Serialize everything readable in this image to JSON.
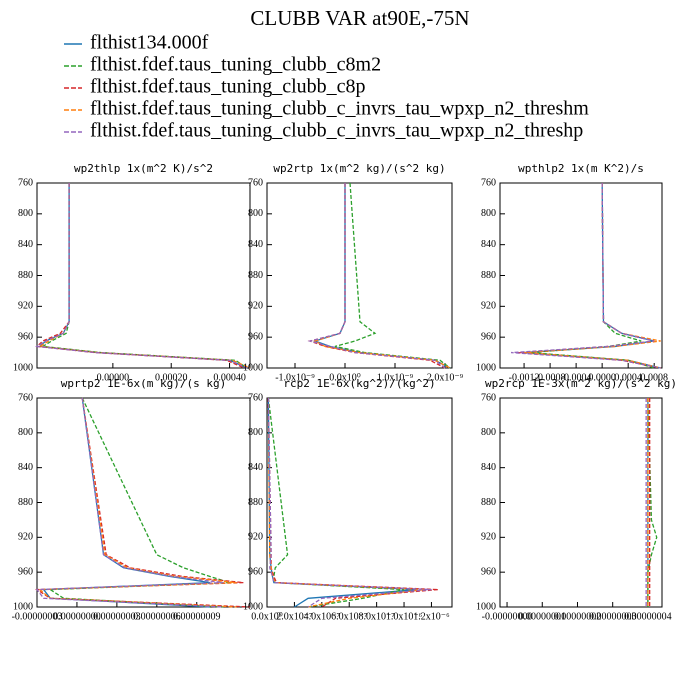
{
  "title": "CLUBB VAR at90E,-75N",
  "legend": [
    {
      "name": "flthist134.000f",
      "color": "#1f77b4",
      "dashed": false
    },
    {
      "name": "flthist.fdef.taus_tuning_clubb_c8m2",
      "color": "#2ca02c",
      "dashed": true
    },
    {
      "name": "flthist.fdef.taus_tuning_clubb_c8p",
      "color": "#d62728",
      "dashed": true
    },
    {
      "name": "flthist.fdef.taus_tuning_clubb_c_invrs_tau_wpxp_n2_threshm",
      "color": "#ff7f0e",
      "dashed": true
    },
    {
      "name": "flthist.fdef.taus_tuning_clubb_c_invrs_tau_wpxp_n2_threshp",
      "color": "#9467bd",
      "dashed": true
    }
  ],
  "chart_data": [
    {
      "type": "line",
      "title": "wp2thlp   1x(m^2 K)/s^2",
      "y": [
        760,
        940,
        955,
        965,
        972,
        980,
        990,
        1000
      ],
      "ylim": [
        1000,
        760
      ],
      "yticks": [
        760,
        800,
        840,
        880,
        920,
        960,
        1000
      ],
      "xlim": [
        -0.00026,
        0.00047
      ],
      "xticks": [
        {
          "value": 0,
          "label": "0.00000"
        },
        {
          "value": 0.0002,
          "label": "0.00020"
        },
        {
          "value": 0.0004,
          "label": "0.00040"
        }
      ],
      "series": [
        {
          "values": [
            -0.00015,
            -0.00015,
            -0.00017,
            -0.00023,
            -0.00025,
            -5e-05,
            0.0004,
            0.00046
          ]
        },
        {
          "values": [
            -0.00015,
            -0.00015,
            -0.00016,
            -0.00021,
            -0.00024,
            -4e-05,
            0.00042,
            0.00046
          ]
        },
        {
          "values": [
            -0.00015,
            -0.00015,
            -0.00018,
            -0.00024,
            -0.00026,
            -6e-05,
            0.00039,
            0.00045
          ]
        },
        {
          "values": [
            -0.00015,
            -0.00015,
            -0.00017,
            -0.00022,
            -0.00025,
            -5e-05,
            0.00041,
            0.00047
          ]
        },
        {
          "values": [
            -0.00015,
            -0.00015,
            -0.00017,
            -0.00023,
            -0.00026,
            -6e-05,
            0.0004,
            0.00046
          ]
        }
      ]
    },
    {
      "type": "line",
      "title": "wp2rtp   1x(m^2 kg)/(s^2 kg)",
      "y": [
        760,
        940,
        955,
        965,
        972,
        980,
        990,
        1000
      ],
      "ylim": [
        1000,
        760
      ],
      "yticks": [
        760,
        800,
        840,
        880,
        920,
        960,
        1000
      ],
      "xlim": [
        -1.56e-09,
        2.14e-09
      ],
      "xticks": [
        {
          "value": -1e-09,
          "label": "-1.0x10⁻⁹"
        },
        {
          "value": 0,
          "label": "0.0x10⁰"
        },
        {
          "value": 1e-09,
          "label": "1.0x10⁻⁹"
        },
        {
          "value": 2e-09,
          "label": "2.0x10⁻⁹"
        }
      ],
      "series": [
        {
          "values": [
            0,
            0,
            -1e-10,
            -6e-10,
            -3e-10,
            3e-10,
            1.8e-09,
            2.1e-09
          ]
        },
        {
          "values": [
            1e-10,
            3e-10,
            6e-10,
            2e-10,
            -2e-10,
            4e-10,
            1.9e-09,
            2.1e-09
          ]
        },
        {
          "values": [
            0,
            0,
            -1e-10,
            -7e-10,
            -4e-10,
            2e-10,
            1.7e-09,
            2e-09
          ]
        },
        {
          "values": [
            0,
            0,
            -1e-10,
            -6e-10,
            -4e-10,
            3e-10,
            1.8e-09,
            2.1e-09
          ]
        },
        {
          "values": [
            0,
            0,
            -1e-10,
            -7e-10,
            -3e-10,
            2e-10,
            1.8e-09,
            2e-09
          ]
        }
      ]
    },
    {
      "type": "line",
      "title": "wpthlp2   1x(m K^2)/s",
      "y": [
        760,
        940,
        955,
        965,
        972,
        980,
        990,
        1000
      ],
      "ylim": [
        1000,
        760
      ],
      "yticks": [
        760,
        800,
        840,
        880,
        920,
        960,
        1000
      ],
      "xlim": [
        -0.00157,
        0.00092
      ],
      "xticks": [
        -0.0012,
        -0.0008,
        -0.0004,
        {
          "value": 0,
          "label": "0.0000"
        },
        0.0004,
        0.0008
      ],
      "series": [
        {
          "values": [
            0,
            2e-05,
            0.0003,
            0.0008,
            0.0002,
            -0.0012,
            0.0004,
            0.0009
          ]
        },
        {
          "values": [
            0,
            2e-05,
            0.0002,
            0.0006,
            0.0001,
            -0.0011,
            0.0004,
            0.0008
          ]
        },
        {
          "values": [
            0,
            2e-05,
            0.0003,
            0.0008,
            0.0001,
            -0.0013,
            0.0003,
            0.0009
          ]
        },
        {
          "values": [
            0,
            2e-05,
            0.0003,
            0.0009,
            0.0002,
            -0.0012,
            0.0004,
            0.0009
          ]
        },
        {
          "values": [
            0,
            2e-05,
            0.0003,
            0.0008,
            0.0001,
            -0.0014,
            0.0003,
            0.0009
          ]
        }
      ]
    },
    {
      "type": "line",
      "title": "wprtp2   1E-6x(m kg)/(s kg)",
      "y": [
        760,
        940,
        955,
        965,
        972,
        980,
        990,
        1000
      ],
      "ylim": [
        1000,
        760
      ],
      "yticks": [
        760,
        800,
        840,
        880,
        920,
        960,
        1000
      ],
      "xlim": [
        -3e-08,
        1.3e-07
      ],
      "xticks": [
        {
          "value": -3e-08,
          "label": "-0.00000003"
        },
        {
          "value": 0,
          "label": "0.00000000"
        },
        {
          "value": 3e-08,
          "label": "0.00000003"
        },
        {
          "value": 6e-08,
          "label": "0.00000006"
        },
        {
          "value": 9e-08,
          "label": "0.00000009"
        }
      ],
      "series": [
        {
          "values": [
            4e-09,
            2e-08,
            3.5e-08,
            7e-08,
            1e-07,
            -2.5e-08,
            -2e-08,
            1e-07
          ]
        },
        {
          "values": [
            4e-09,
            6e-08,
            8e-08,
            1e-07,
            1.15e-07,
            -2e-08,
            -1e-08,
            1.1e-07
          ]
        },
        {
          "values": [
            4e-09,
            2.2e-08,
            4e-08,
            8e-08,
            1.25e-07,
            -3e-08,
            -2e-08,
            1.3e-07
          ]
        },
        {
          "values": [
            4e-09,
            2.1e-08,
            3.8e-08,
            7.5e-08,
            1.2e-07,
            -2.8e-08,
            -2e-08,
            1.2e-07
          ]
        },
        {
          "values": [
            4e-09,
            2e-08,
            3.6e-08,
            7.2e-08,
            1.1e-07,
            -3e-08,
            -2.5e-08,
            1.1e-07
          ]
        }
      ]
    },
    {
      "type": "line",
      "title": "rcp2   1E-6x(kg^2)/(kg^2)",
      "y": [
        760,
        940,
        955,
        965,
        972,
        980,
        990,
        1000
      ],
      "ylim": [
        1000,
        760
      ],
      "yticks": [
        760,
        800,
        840,
        880,
        920,
        960,
        1000
      ],
      "xlim": [
        0,
        1.35e-06
      ],
      "xticks": [
        {
          "value": 0,
          "label": "0.0x10⁰"
        },
        {
          "value": 2e-07,
          "label": "2.0x10⁻⁷"
        },
        {
          "value": 4e-07,
          "label": "4.0x10⁻⁷"
        },
        {
          "value": 6e-07,
          "label": "6.0x10⁻⁷"
        },
        {
          "value": 8e-07,
          "label": "8.0x10⁻⁷"
        },
        {
          "value": 1e-06,
          "label": "1.0x10⁻⁶"
        },
        {
          "value": 1.2e-06,
          "label": "1.2x10⁻⁶"
        }
      ],
      "series": [
        {
          "values": [
            1e-08,
            2e-08,
            3e-08,
            4e-08,
            5e-08,
            1.1e-06,
            3e-07,
            2e-07
          ]
        },
        {
          "values": [
            1e-08,
            1.5e-07,
            6e-08,
            5e-08,
            6e-08,
            1e-06,
            7e-07,
            3e-07
          ]
        },
        {
          "values": [
            1e-08,
            3e-08,
            3e-08,
            5e-08,
            7e-08,
            1.25e-06,
            5e-07,
            4e-07
          ]
        },
        {
          "values": [
            1e-08,
            2e-08,
            3e-08,
            4e-08,
            6e-08,
            1.15e-06,
            6e-07,
            3e-07
          ]
        },
        {
          "values": [
            1e-08,
            3e-08,
            2e-08,
            4e-08,
            5e-08,
            1.2e-06,
            4e-07,
            3e-07
          ]
        }
      ]
    },
    {
      "type": "line",
      "title": "wp2rcp   1E-3x(m^2 kg)/(s^2 kg)",
      "y": [
        760,
        900,
        920,
        940,
        960,
        980,
        990,
        1000
      ],
      "ylim": [
        1000,
        760
      ],
      "yticks": [
        760,
        800,
        840,
        880,
        920,
        960,
        1000
      ],
      "xlim": [
        -2e-09,
        4.4e-08
      ],
      "xticks": [
        {
          "value": 0,
          "label": "-0.00000000"
        },
        {
          "value": 1e-08,
          "label": "0.00000001"
        },
        {
          "value": 2e-08,
          "label": "0.00000002"
        },
        {
          "value": 3e-08,
          "label": "0.00000003"
        },
        {
          "value": 4e-08,
          "label": "0.00000004"
        }
      ],
      "series": [
        {
          "values": [
            4e-08,
            4e-08,
            4e-08,
            4e-08,
            4e-08,
            4e-08,
            4e-08,
            4e-08
          ]
        },
        {
          "values": [
            4e-08,
            4.1e-08,
            4.25e-08,
            4.1e-08,
            4e-08,
            4e-08,
            4e-08,
            4e-08
          ]
        },
        {
          "values": [
            4.05e-08,
            4.05e-08,
            4.05e-08,
            4.05e-08,
            4.05e-08,
            4.05e-08,
            4.05e-08,
            4.05e-08
          ]
        },
        {
          "values": [
            4e-08,
            4e-08,
            4e-08,
            4e-08,
            4e-08,
            4e-08,
            4e-08,
            4e-08
          ]
        },
        {
          "values": [
            3.95e-08,
            3.95e-08,
            3.95e-08,
            3.95e-08,
            3.95e-08,
            3.95e-08,
            3.95e-08,
            3.95e-08
          ]
        }
      ]
    }
  ]
}
